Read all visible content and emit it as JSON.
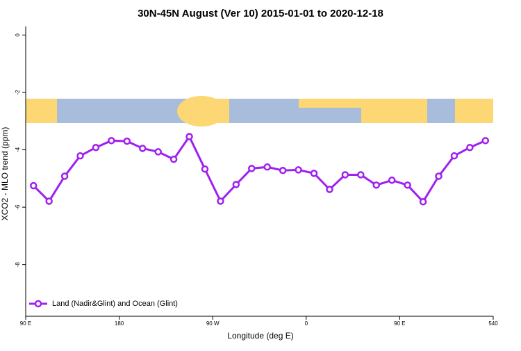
{
  "chart_data": {
    "type": "line",
    "title": "30N-45N August (Ver 10)   2015-01-01 to 2020-12-18",
    "x_label": "Longitude (deg E)",
    "y_label": "XCO2 - MLO trend (ppm)",
    "x": [
      97.5,
      112.5,
      127.5,
      142.5,
      157.5,
      172.5,
      187.5,
      202.5,
      217.5,
      232.5,
      247.5,
      262.5,
      277.5,
      292.5,
      307.5,
      322.5,
      337.5,
      352.5,
      367.5,
      382.5,
      397.5,
      412.5,
      427.5,
      442.5,
      457.5,
      472.5,
      487.5,
      502.5,
      517.5,
      532.5
    ],
    "series": [
      {
        "name": "Land (Nadir&Glint) and Ocean (Glint)",
        "color": "#a020f0",
        "values": [
          -5.25,
          -5.79,
          -4.92,
          -4.21,
          -3.92,
          -3.68,
          -3.7,
          -3.95,
          -4.07,
          -4.33,
          -3.54,
          -4.67,
          -5.79,
          -5.21,
          -4.65,
          -4.6,
          -4.72,
          -4.7,
          -4.82,
          -5.38,
          -4.87,
          -4.87,
          -5.23,
          -5.06,
          -5.23,
          -5.81,
          -4.92,
          -4.21,
          -3.92,
          -3.68
        ]
      }
    ],
    "xlim": [
      90,
      540
    ],
    "xticks": [
      {
        "value": 90,
        "label": "90 E"
      },
      180,
      {
        "value": 270,
        "label": "90 W"
      },
      {
        "value": 360,
        "label": "0"
      },
      {
        "value": 450,
        "label": "90 E"
      },
      540
    ],
    "ylim": [
      -9.8,
      0.3
    ],
    "yticks": [
      0,
      -2,
      -4,
      -6,
      -8
    ],
    "legend": "bottom-left"
  }
}
